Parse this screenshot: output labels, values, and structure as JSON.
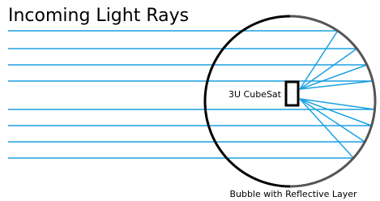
{
  "title": "Incoming Light Rays",
  "satellite_label": "3U CubeSat",
  "bubble_label": "Bubble with Reflective Layer"
}
